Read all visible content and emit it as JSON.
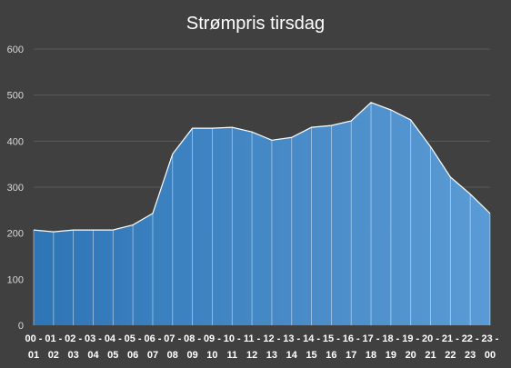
{
  "chart_data": {
    "type": "area",
    "title": "Strømpris tirsdag",
    "xlabel": "",
    "ylabel": "",
    "ylim": [
      0,
      600
    ],
    "yticks": [
      0,
      100,
      200,
      300,
      400,
      500,
      600
    ],
    "grid": true,
    "legend": "none",
    "categories": [
      "00 - 01",
      "01 - 02",
      "02 - 03",
      "03 - 04",
      "04 - 05",
      "05 - 06",
      "06 - 07",
      "07 - 08",
      "08 - 09",
      "09 - 10",
      "10 - 11",
      "11 - 12",
      "12 - 13",
      "13 - 14",
      "14 - 15",
      "15 - 16",
      "16 - 17",
      "17 - 18",
      "18 - 19",
      "19 - 20",
      "20 - 21",
      "21 - 22",
      "22 - 23",
      "23 - 00"
    ],
    "tick_labels_top": [
      "00 -",
      "01 -",
      "02 -",
      "03 -",
      "04 -",
      "05 -",
      "06 -",
      "07 -",
      "08 -",
      "09 -",
      "10 -",
      "11 -",
      "12 -",
      "13 -",
      "14 -",
      "15 -",
      "16 -",
      "17 -",
      "18 -",
      "19 -",
      "20 -",
      "21 -",
      "22 -",
      "23 -"
    ],
    "tick_labels_bottom": [
      "01",
      "02",
      "03",
      "04",
      "05",
      "06",
      "07",
      "08",
      "09",
      "10",
      "11",
      "12",
      "13",
      "14",
      "15",
      "16",
      "17",
      "18",
      "19",
      "20",
      "21",
      "22",
      "23",
      "00"
    ],
    "series": [
      {
        "values": [
          207,
          203,
          207,
          207,
          207,
          218,
          243,
          372,
          428,
          428,
          430,
          420,
          402,
          408,
          430,
          434,
          444,
          484,
          468,
          446,
          388,
          322,
          285,
          243
        ]
      }
    ],
    "colors": {
      "background": "#404040",
      "area_start": "#2e75b6",
      "area_end": "#5b9bd5",
      "outline": "#ffffff",
      "grid": "#5a5a5a"
    }
  }
}
